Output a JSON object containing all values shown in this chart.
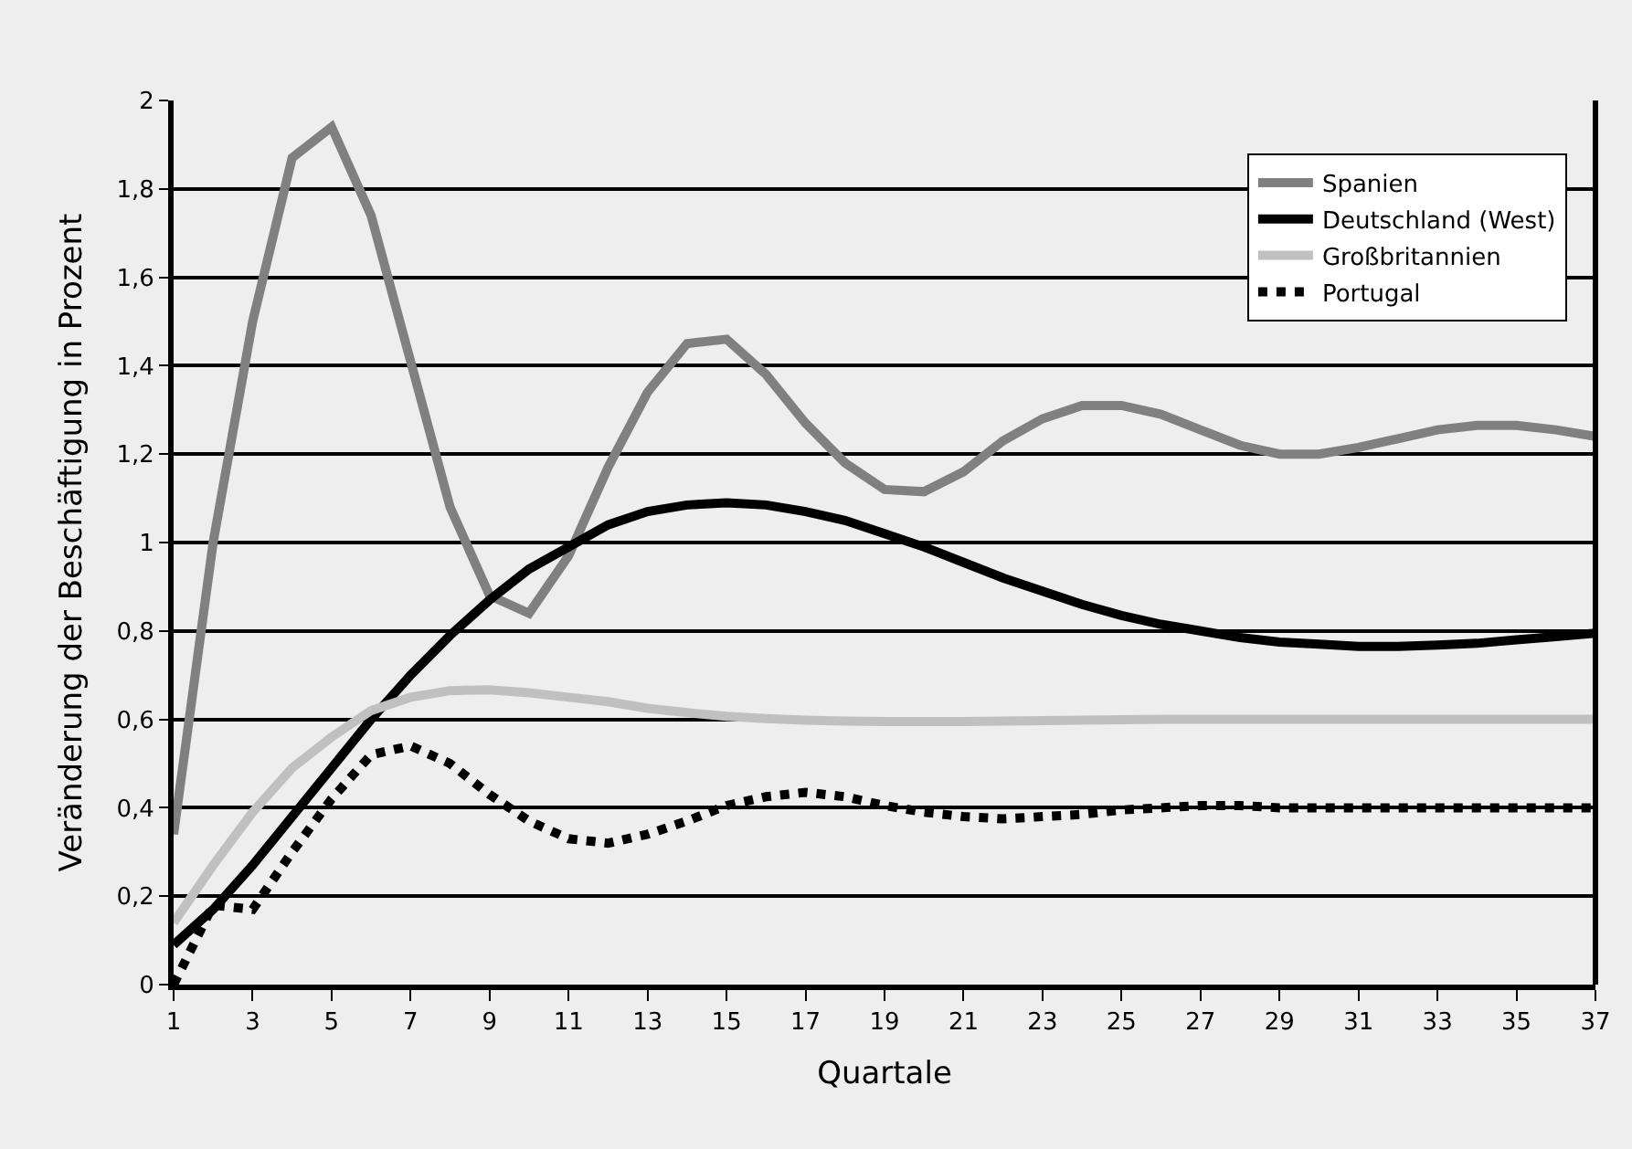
{
  "chart_data": {
    "type": "line",
    "xlabel": "Quartale",
    "ylabel": "Veränderung der Beschäftigung in Prozent",
    "x": [
      1,
      2,
      3,
      4,
      5,
      6,
      7,
      8,
      9,
      10,
      11,
      12,
      13,
      14,
      15,
      16,
      17,
      18,
      19,
      20,
      21,
      22,
      23,
      24,
      25,
      26,
      27,
      28,
      29,
      30,
      31,
      32,
      33,
      34,
      35,
      36,
      37
    ],
    "series": [
      {
        "name": "Spanien",
        "color": "#808080",
        "line_style": "solid",
        "values": [
          0.34,
          1.0,
          1.5,
          1.87,
          1.94,
          1.74,
          1.41,
          1.08,
          0.88,
          0.84,
          0.97,
          1.17,
          1.34,
          1.45,
          1.46,
          1.38,
          1.27,
          1.18,
          1.12,
          1.115,
          1.16,
          1.23,
          1.28,
          1.31,
          1.31,
          1.29,
          1.255,
          1.22,
          1.2,
          1.2,
          1.215,
          1.235,
          1.255,
          1.265,
          1.265,
          1.255,
          1.24
        ]
      },
      {
        "name": "Deutschland (West)",
        "color": "#000000",
        "line_style": "solid",
        "values": [
          0.09,
          0.17,
          0.27,
          0.38,
          0.49,
          0.6,
          0.7,
          0.79,
          0.87,
          0.94,
          0.99,
          1.04,
          1.07,
          1.085,
          1.09,
          1.085,
          1.07,
          1.05,
          1.02,
          0.99,
          0.955,
          0.92,
          0.89,
          0.86,
          0.835,
          0.815,
          0.8,
          0.785,
          0.775,
          0.77,
          0.765,
          0.765,
          0.768,
          0.772,
          0.78,
          0.787,
          0.795
        ]
      },
      {
        "name": "Großbritannien",
        "color": "#c0c0c0",
        "line_style": "solid",
        "values": [
          0.14,
          0.27,
          0.39,
          0.49,
          0.56,
          0.62,
          0.65,
          0.665,
          0.667,
          0.66,
          0.65,
          0.64,
          0.625,
          0.615,
          0.607,
          0.602,
          0.598,
          0.596,
          0.595,
          0.595,
          0.595,
          0.596,
          0.597,
          0.598,
          0.599,
          0.6,
          0.6,
          0.6,
          0.6,
          0.6,
          0.6,
          0.6,
          0.6,
          0.6,
          0.6,
          0.6,
          0.6
        ]
      },
      {
        "name": "Portugal",
        "color": "#000000",
        "line_style": "dotted",
        "values": [
          0.0,
          0.18,
          0.17,
          0.3,
          0.42,
          0.52,
          0.54,
          0.5,
          0.43,
          0.37,
          0.33,
          0.32,
          0.34,
          0.37,
          0.405,
          0.425,
          0.435,
          0.425,
          0.405,
          0.39,
          0.38,
          0.375,
          0.38,
          0.385,
          0.395,
          0.4,
          0.405,
          0.405,
          0.4,
          0.4,
          0.4,
          0.4,
          0.4,
          0.4,
          0.4,
          0.4,
          0.4
        ]
      }
    ],
    "xlim": [
      1,
      37
    ],
    "xticks": [
      1,
      3,
      5,
      7,
      9,
      11,
      13,
      15,
      17,
      19,
      21,
      23,
      25,
      27,
      29,
      31,
      33,
      35,
      37
    ],
    "ylim": [
      0,
      2
    ],
    "yticks": [
      {
        "value": 0,
        "label": "0"
      },
      {
        "value": 0.2,
        "label": "0,2"
      },
      {
        "value": 0.4,
        "label": "0,4"
      },
      {
        "value": 0.6,
        "label": "0,6"
      },
      {
        "value": 0.8,
        "label": "0,8"
      },
      {
        "value": 1,
        "label": "1"
      },
      {
        "value": 1.2,
        "label": "1,2"
      },
      {
        "value": 1.4,
        "label": "1,4"
      },
      {
        "value": 1.6,
        "label": "1,6"
      },
      {
        "value": 1.8,
        "label": "1,8"
      },
      {
        "value": 2,
        "label": "2"
      }
    ],
    "grid": "y",
    "legend": "top right",
    "marker": "none"
  }
}
